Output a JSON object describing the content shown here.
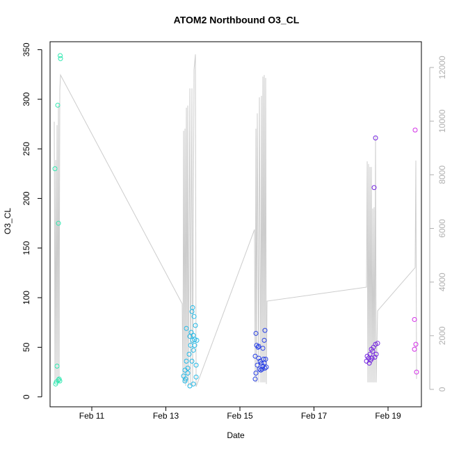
{
  "chart_data": {
    "type": "scatter",
    "title": "ATOM2 Northbound O3_CL",
    "xlabel": "Date",
    "ylabel": "O3_CL",
    "xlim": [
      9.873,
      19.901
    ],
    "ylim": [
      -10,
      358
    ],
    "y2lim": [
      -650,
      12960
    ],
    "xticks": [
      {
        "value": 11,
        "label": "Feb 11"
      },
      {
        "value": 13,
        "label": "Feb 13"
      },
      {
        "value": 15,
        "label": "Feb 15"
      },
      {
        "value": 17,
        "label": "Feb 17"
      },
      {
        "value": 19,
        "label": "Feb 19"
      }
    ],
    "yticks": [
      0,
      50,
      100,
      150,
      200,
      250,
      300,
      350
    ],
    "y2ticks": [
      0,
      2000,
      4000,
      6000,
      8000,
      10000,
      12000
    ],
    "series": [
      {
        "color": "#2ee8b0",
        "x": [
          10.146,
          10.155,
          10.08,
          10.005,
          10.099,
          10.061,
          10.042,
          10.024,
          10.117,
          10.136,
          10.099
        ],
        "values": [
          344,
          341,
          294,
          230,
          175,
          31,
          15,
          13,
          18,
          16,
          17
        ]
      },
      {
        "color": "#22b8e6",
        "x": [
          13.554,
          13.723,
          13.704,
          13.761,
          13.798,
          13.685,
          13.648,
          13.742,
          13.779,
          13.836,
          13.723,
          13.667,
          13.779,
          13.742,
          13.629,
          13.817,
          13.554,
          13.704,
          13.516,
          13.592,
          13.479,
          13.535,
          13.516,
          13.648,
          13.742,
          13.817,
          13.592
        ],
        "values": [
          69,
          90,
          86,
          81,
          72,
          65,
          61,
          62,
          58,
          57,
          57,
          52,
          52,
          47,
          43,
          32,
          36,
          36,
          27,
          24,
          21,
          18,
          16,
          11,
          13,
          20,
          29
        ]
      },
      {
        "color": "#2840e6",
        "x": [
          15.432,
          15.676,
          15.657,
          15.62,
          15.451,
          15.488,
          15.413,
          15.507,
          15.545,
          15.639,
          15.695,
          15.469,
          15.582,
          15.62,
          15.714,
          15.526,
          15.676,
          15.432,
          15.563,
          15.601,
          15.413,
          15.507,
          15.657
        ],
        "values": [
          64,
          67,
          57,
          49,
          52,
          50,
          41,
          39,
          36,
          38,
          38,
          32,
          34,
          31,
          30,
          28,
          29,
          24,
          27,
          28,
          18,
          51,
          34
        ]
      },
      {
        "color": "#7424e0",
        "x": [
          18.662,
          18.624,
          18.718,
          18.662,
          18.606,
          18.549,
          18.587,
          18.512,
          18.681,
          18.437,
          18.474,
          18.568,
          18.418,
          18.493,
          18.643,
          18.531
        ],
        "values": [
          261,
          211,
          54,
          53,
          50,
          48,
          46,
          43,
          43,
          41,
          39,
          39,
          36,
          34,
          40,
          37
        ]
      },
      {
        "color": "#d22ee6",
        "x": [
          19.732,
          19.714,
          19.751,
          19.714,
          19.77
        ],
        "values": [
          269,
          78,
          53,
          48,
          25
        ]
      },
      {
        "type": "line",
        "axis": "y2",
        "color": "#cccccc",
        "x": [
          9.986,
          10.005,
          10.024,
          10.042,
          10.061,
          10.08,
          10.099,
          10.117,
          10.136,
          10.155,
          13.441,
          13.46,
          13.479,
          13.498,
          13.516,
          13.535,
          13.554,
          13.573,
          13.592,
          13.61,
          13.648,
          13.667,
          13.704,
          13.723,
          13.761,
          13.798,
          13.817,
          15.394,
          15.413,
          15.432,
          15.451,
          15.469,
          15.507,
          15.526,
          15.563,
          15.582,
          15.601,
          15.62,
          15.639,
          15.657,
          15.676,
          15.695,
          15.714,
          15.732,
          18.418,
          18.437,
          18.455,
          18.474,
          18.493,
          18.512,
          18.531,
          18.549,
          18.568,
          18.587,
          18.606,
          18.624,
          18.643,
          18.662,
          18.681,
          18.718,
          19.732,
          19.751,
          19.77
        ],
        "values": [
          9980,
          260,
          8550,
          260,
          9850,
          260,
          10630,
          260,
          11150,
          11720,
          3190,
          260,
          9640,
          260,
          9720,
          130,
          10500,
          260,
          10580,
          130,
          11220,
          130,
          11220,
          130,
          11920,
          12490,
          100,
          5960,
          260,
          9720,
          260,
          10290,
          260,
          10890,
          260,
          10940,
          260,
          11660,
          260,
          11720,
          260,
          11610,
          200,
          3290,
          3810,
          8500,
          260,
          8400,
          260,
          8290,
          260,
          8290,
          260,
          6740,
          260,
          6790,
          260,
          9430,
          260,
          2930,
          4540,
          8530,
          390
        ]
      }
    ]
  }
}
